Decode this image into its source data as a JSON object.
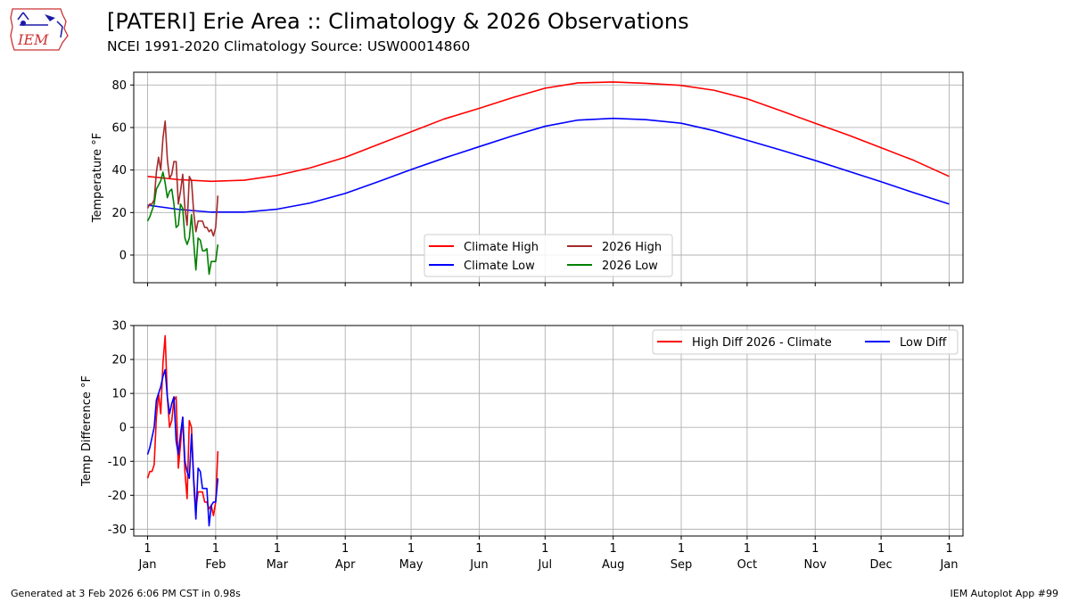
{
  "header": {
    "title": "[PATERI] Erie Area :: Climatology & 2026 Observations",
    "subtitle": "NCEI 1991-2020 Climatology Source: USW00014860",
    "logo_text": "IEM"
  },
  "footer": {
    "generated": "Generated at 3 Feb 2026 6:06 PM CST in 0.98s",
    "app": "IEM Autoplot App #99"
  },
  "colors": {
    "climate_high": "#ff0000",
    "climate_low": "#0000ff",
    "obs_high": "#a52a2a",
    "obs_low": "#008000",
    "grid": "#b0b0b0"
  },
  "chart_data": [
    {
      "type": "line",
      "ylabel": "Temperature °F",
      "xlabel": "",
      "xlim": [
        1,
        366
      ],
      "ylim": [
        -13,
        86
      ],
      "yticks": [
        0,
        20,
        40,
        60,
        80
      ],
      "xticks_day": [
        1,
        32,
        60,
        91,
        121,
        152,
        182,
        213,
        244,
        274,
        305,
        335,
        366
      ],
      "xtick_labels": [
        "1\nJan",
        "1\nFeb",
        "1\nMar",
        "1\nApr",
        "1\nMay",
        "1\nJun",
        "1\nJul",
        "1\nAug",
        "1\nSep",
        "1\nOct",
        "1\nNov",
        "1\nDec",
        "1\nJan"
      ],
      "show_tick_labels": false,
      "grid": true,
      "legend_position": "bottom-center",
      "legend_columns": 2,
      "series": [
        {
          "name": "Climate High",
          "color": "#ff0000",
          "x": [
            1,
            15,
            30,
            45,
            60,
            75,
            91,
            106,
            121,
            136,
            152,
            167,
            182,
            197,
            213,
            228,
            244,
            259,
            274,
            289,
            305,
            320,
            335,
            350,
            366
          ],
          "values": [
            37,
            35.5,
            34.7,
            35.2,
            37.5,
            41,
            46,
            52,
            58,
            64,
            69,
            74,
            78.5,
            81,
            81.4,
            80.8,
            79.8,
            77.5,
            73.5,
            68,
            62,
            56.5,
            50.5,
            44.5,
            37
          ]
        },
        {
          "name": "Climate Low",
          "color": "#0000ff",
          "x": [
            1,
            15,
            30,
            45,
            60,
            75,
            91,
            106,
            121,
            136,
            152,
            167,
            182,
            197,
            213,
            228,
            244,
            259,
            274,
            289,
            305,
            320,
            335,
            350,
            366
          ],
          "values": [
            23.5,
            21.5,
            20.2,
            20.2,
            21.6,
            24.5,
            29,
            34.5,
            40.2,
            45.6,
            51,
            56,
            60.6,
            63.5,
            64.3,
            63.7,
            62,
            58.5,
            54,
            49.5,
            44.5,
            39.5,
            34.5,
            29.3,
            24
          ]
        },
        {
          "name": "2026 High",
          "color": "#a52a2a",
          "x": [
            1,
            2,
            3,
            4,
            5,
            6,
            7,
            8,
            9,
            10,
            11,
            12,
            13,
            14,
            15,
            16,
            17,
            18,
            19,
            20,
            21,
            22,
            23,
            24,
            25,
            26,
            27,
            28,
            29,
            30,
            31,
            32,
            33
          ],
          "values": [
            22,
            24,
            24,
            26,
            39,
            46,
            40,
            55,
            63,
            45,
            36,
            38,
            44,
            44,
            24,
            30,
            38,
            22,
            14,
            37,
            35,
            20,
            11,
            16,
            16,
            16,
            13,
            13,
            11,
            12,
            9,
            13,
            28
          ]
        },
        {
          "name": "2026 Low",
          "color": "#008000",
          "x": [
            1,
            2,
            3,
            4,
            5,
            6,
            7,
            8,
            9,
            10,
            11,
            12,
            13,
            14,
            15,
            16,
            17,
            18,
            19,
            20,
            21,
            22,
            23,
            24,
            25,
            26,
            27,
            28,
            29,
            30,
            31,
            32,
            33
          ],
          "values": [
            16,
            18,
            21,
            24,
            31,
            33,
            35,
            39,
            34,
            27,
            30,
            31,
            24,
            13,
            14,
            24,
            22,
            8,
            5,
            8,
            19,
            6,
            -7,
            8,
            7,
            2,
            2,
            3,
            -9,
            -3,
            -3,
            -3,
            5
          ]
        }
      ]
    },
    {
      "type": "line",
      "ylabel": "Temp Difference °F",
      "xlabel": "",
      "xlim": [
        1,
        366
      ],
      "ylim": [
        -32,
        30
      ],
      "yticks": [
        -30,
        -20,
        -10,
        0,
        10,
        20,
        30
      ],
      "xticks_day": [
        1,
        32,
        60,
        91,
        121,
        152,
        182,
        213,
        244,
        274,
        305,
        335,
        366
      ],
      "xtick_labels": [
        "1\nJan",
        "1\nFeb",
        "1\nMar",
        "1\nApr",
        "1\nMay",
        "1\nJun",
        "1\nJul",
        "1\nAug",
        "1\nSep",
        "1\nOct",
        "1\nNov",
        "1\nDec",
        "1\nJan"
      ],
      "show_tick_labels": true,
      "grid": true,
      "legend_position": "top-right",
      "legend_columns": 2,
      "series": [
        {
          "name": "High Diff 2026 - Climate",
          "color": "#ff0000",
          "x": [
            1,
            2,
            3,
            4,
            5,
            6,
            7,
            8,
            9,
            10,
            11,
            12,
            13,
            14,
            15,
            16,
            17,
            18,
            19,
            20,
            21,
            22,
            23,
            24,
            25,
            26,
            27,
            28,
            29,
            30,
            31,
            32,
            33
          ],
          "values": [
            -15,
            -13,
            -13,
            -11,
            3,
            10,
            4,
            19,
            27,
            9,
            0,
            2,
            8,
            9,
            -12,
            -5,
            3,
            -13,
            -21,
            2,
            0,
            -15,
            -24,
            -19,
            -19,
            -19,
            -22,
            -22,
            -24,
            -23,
            -26,
            -22,
            -7
          ]
        },
        {
          "name": "Low Diff",
          "color": "#0000ff",
          "x": [
            1,
            2,
            3,
            4,
            5,
            6,
            7,
            8,
            9,
            10,
            11,
            12,
            13,
            14,
            15,
            16,
            17,
            18,
            19,
            20,
            21,
            22,
            23,
            24,
            25,
            26,
            27,
            28,
            29,
            30,
            31,
            32,
            33
          ],
          "values": [
            -8,
            -6,
            -3,
            0,
            8,
            10,
            12,
            15,
            17,
            9,
            4,
            7,
            9,
            -4,
            -8,
            -2,
            3,
            -10,
            -13,
            -15,
            -2,
            -16,
            -27,
            -12,
            -13,
            -18,
            -18,
            -18,
            -29,
            -23,
            -22,
            -22,
            -15
          ]
        }
      ]
    }
  ]
}
